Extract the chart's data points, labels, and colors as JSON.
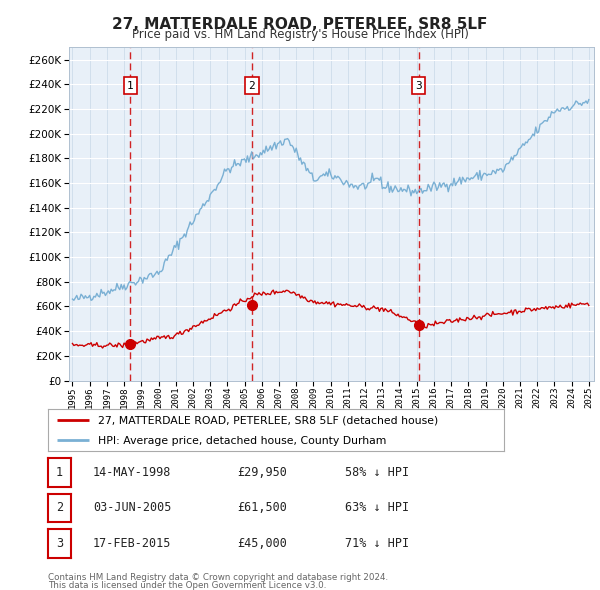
{
  "title": "27, MATTERDALE ROAD, PETERLEE, SR8 5LF",
  "subtitle": "Price paid vs. HM Land Registry's House Price Index (HPI)",
  "background_color": "#ffffff",
  "plot_bg_color": "#e8f0f8",
  "hpi_color": "#7ab0d4",
  "price_color": "#cc0000",
  "dashed_line_color": "#cc0000",
  "ylim": [
    0,
    270000
  ],
  "yticks": [
    0,
    20000,
    40000,
    60000,
    80000,
    100000,
    120000,
    140000,
    160000,
    180000,
    200000,
    220000,
    240000,
    260000
  ],
  "x_start_year": 1995,
  "x_end_year": 2025,
  "transactions": [
    {
      "year": 1998.37,
      "price": 29950,
      "label": "1"
    },
    {
      "year": 2005.42,
      "price": 61500,
      "label": "2"
    },
    {
      "year": 2015.12,
      "price": 45000,
      "label": "3"
    }
  ],
  "legend_line1": "27, MATTERDALE ROAD, PETERLEE, SR8 5LF (detached house)",
  "legend_line2": "HPI: Average price, detached house, County Durham",
  "table_rows": [
    {
      "num": "1",
      "date": "14-MAY-1998",
      "price": "£29,950",
      "pct": "58% ↓ HPI"
    },
    {
      "num": "2",
      "date": "03-JUN-2005",
      "price": "£61,500",
      "pct": "63% ↓ HPI"
    },
    {
      "num": "3",
      "date": "17-FEB-2015",
      "price": "£45,000",
      "pct": "71% ↓ HPI"
    }
  ],
  "footer1": "Contains HM Land Registry data © Crown copyright and database right 2024.",
  "footer2": "This data is licensed under the Open Government Licence v3.0."
}
